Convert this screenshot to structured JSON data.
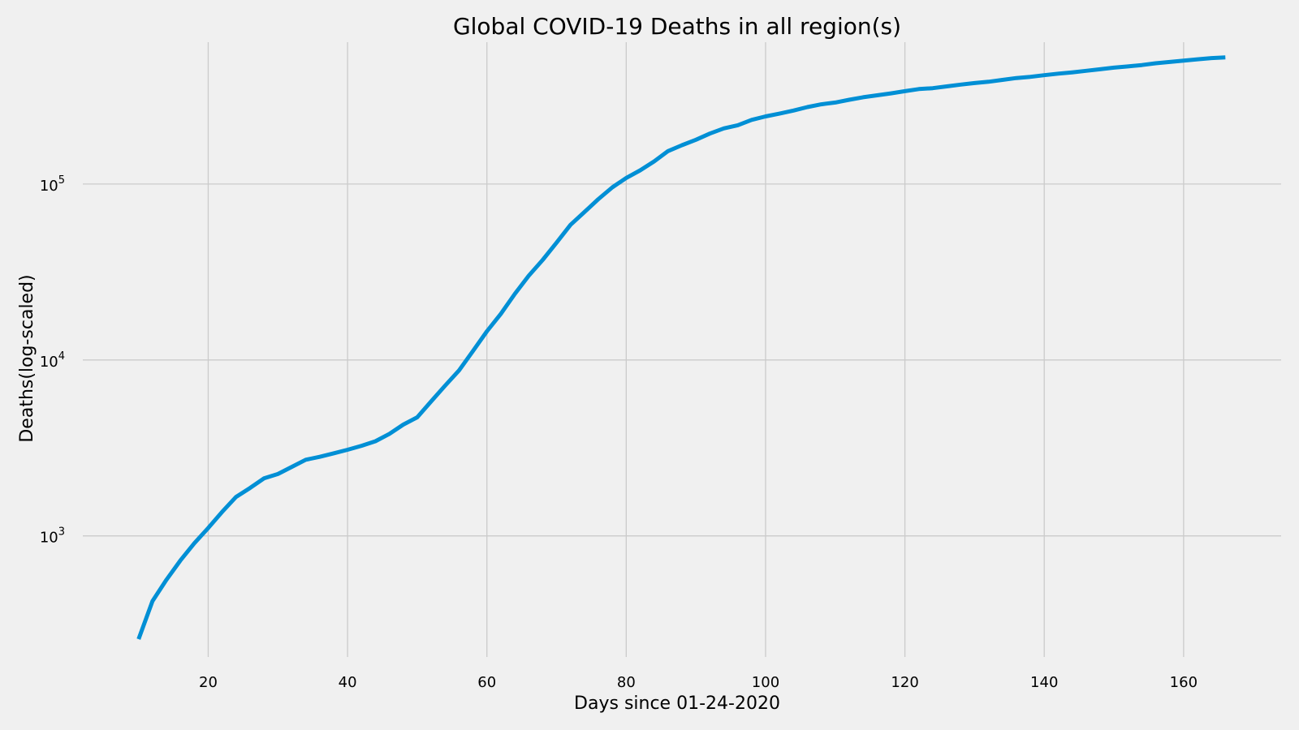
{
  "chart_data": {
    "type": "line",
    "title": "Global COVID-19 Deaths in all region(s)",
    "xlabel": "Days since 01-24-2020",
    "ylabel": "Deaths(log-scaled)",
    "y_scale": "log",
    "grid": true,
    "background_color": "#f0f0f0",
    "grid_color": "#cbcbcb",
    "xlim": [
      2,
      174
    ],
    "ylim": [
      205,
      640000
    ],
    "x_ticks": [
      20,
      40,
      60,
      80,
      100,
      120,
      140,
      160
    ],
    "x_tick_labels": [
      "20",
      "40",
      "60",
      "80",
      "100",
      "120",
      "140",
      "160"
    ],
    "y_ticks": [
      1000,
      10000,
      100000
    ],
    "y_tick_labels": [
      {
        "base": "10",
        "exp": "3"
      },
      {
        "base": "10",
        "exp": "4"
      },
      {
        "base": "10",
        "exp": "5"
      }
    ],
    "series": [
      {
        "color": "#008fd5",
        "x": [
          10,
          12,
          14,
          16,
          18,
          20,
          22,
          24,
          26,
          28,
          30,
          32,
          34,
          36,
          38,
          40,
          42,
          44,
          46,
          48,
          50,
          52,
          54,
          56,
          58,
          60,
          62,
          64,
          66,
          68,
          70,
          72,
          74,
          76,
          78,
          80,
          82,
          84,
          86,
          88,
          90,
          92,
          94,
          96,
          98,
          100,
          102,
          104,
          106,
          108,
          110,
          112,
          114,
          116,
          118,
          120,
          122,
          124,
          126,
          128,
          130,
          132,
          134,
          136,
          138,
          140,
          142,
          144,
          146,
          148,
          150,
          152,
          154,
          156,
          158,
          160,
          162,
          164,
          166
        ],
        "y": [
          259,
          426,
          563,
          724,
          908,
          1110,
          1370,
          1666,
          1873,
          2122,
          2247,
          2469,
          2710,
          2814,
          2946,
          3086,
          3254,
          3452,
          3802,
          4290,
          4720,
          5820,
          7140,
          8720,
          11250,
          14550,
          18300,
          23700,
          30100,
          37000,
          46400,
          58600,
          69300,
          82100,
          95700,
          108300,
          119600,
          134500,
          153800,
          166200,
          178400,
          193400,
          207000,
          215800,
          231400,
          242400,
          251200,
          261500,
          273800,
          283800,
          290400,
          301100,
          311400,
          319400,
          327500,
          337100,
          346400,
          350400,
          358700,
          367300,
          374700,
          381400,
          390600,
          400300,
          406900,
          415300,
          423800,
          431100,
          440200,
          449100,
          458500,
          466100,
          474600,
          485900,
          494100,
          502800,
          511400,
          519900,
          524000
        ]
      }
    ]
  }
}
